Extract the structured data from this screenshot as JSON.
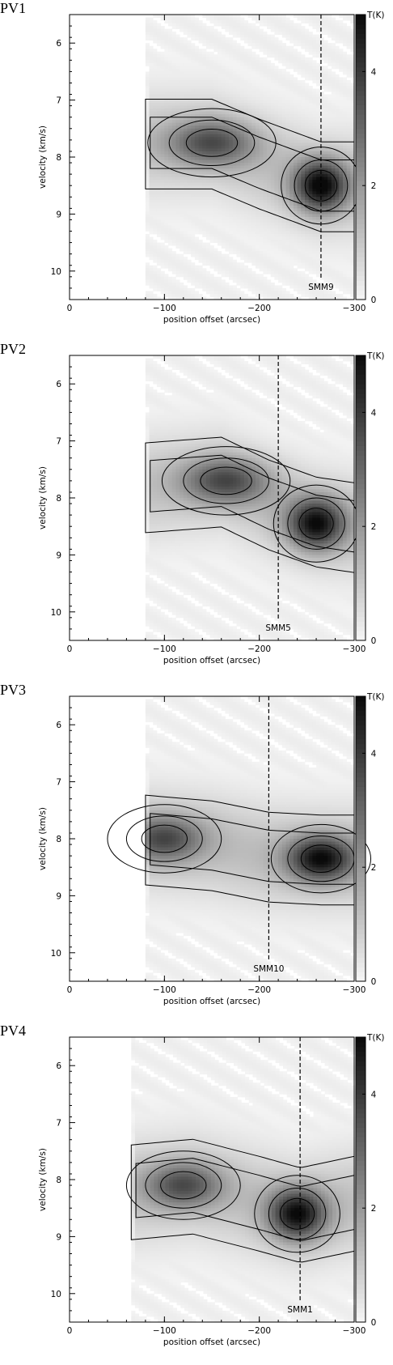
{
  "chart_data": [
    {
      "type": "heatmap",
      "label": "PV1",
      "xlabel": "position offset (arcsec)",
      "ylabel": "velocity (km/s)",
      "colorbar_label": "T(K)",
      "xlim": [
        0,
        -300
      ],
      "ylim": [
        5.5,
        10.5
      ],
      "clim": [
        0,
        5
      ],
      "xticks": [
        0,
        -100,
        -200,
        -300
      ],
      "yticks": [
        6,
        7,
        8,
        9,
        10
      ],
      "cticks": [
        0,
        2,
        4
      ],
      "marker": {
        "name": "SMM9",
        "x": -265
      },
      "emission": {
        "x_start": -80,
        "x_end": -300,
        "ridge": [
          [
            -80,
            7.75
          ],
          [
            -150,
            7.75
          ],
          [
            -200,
            8.1
          ],
          [
            -265,
            8.5
          ],
          [
            -300,
            8.5
          ]
        ],
        "peaks": [
          {
            "x": -265,
            "v": 8.5,
            "T": 4.2,
            "sx": 28,
            "sv": 0.45
          },
          {
            "x": -150,
            "v": 7.75,
            "T": 2.6,
            "sx": 45,
            "sv": 0.4
          }
        ],
        "base_T": 1.1,
        "vwidth": 0.9
      }
    },
    {
      "type": "heatmap",
      "label": "PV2",
      "xlabel": "position offset (arcsec)",
      "ylabel": "velocity (km/s)",
      "colorbar_label": "T(K)",
      "xlim": [
        0,
        -300
      ],
      "ylim": [
        5.5,
        10.5
      ],
      "clim": [
        0,
        5
      ],
      "xticks": [
        0,
        -100,
        -200,
        -300
      ],
      "yticks": [
        6,
        7,
        8,
        9,
        10
      ],
      "cticks": [
        0,
        2,
        4
      ],
      "marker": {
        "name": "SMM5",
        "x": -220
      },
      "emission": {
        "x_start": -80,
        "x_end": -300,
        "ridge": [
          [
            -80,
            7.8
          ],
          [
            -160,
            7.7
          ],
          [
            -210,
            8.1
          ],
          [
            -260,
            8.4
          ],
          [
            -300,
            8.5
          ]
        ],
        "peaks": [
          {
            "x": -260,
            "v": 8.45,
            "T": 4.0,
            "sx": 30,
            "sv": 0.45
          },
          {
            "x": -165,
            "v": 7.7,
            "T": 2.7,
            "sx": 45,
            "sv": 0.4
          }
        ],
        "base_T": 1.1,
        "vwidth": 0.9
      }
    },
    {
      "type": "heatmap",
      "label": "PV3",
      "xlabel": "position offset (arcsec)",
      "ylabel": "velocity (km/s)",
      "colorbar_label": "T(K)",
      "xlim": [
        0,
        -300
      ],
      "ylim": [
        5.5,
        10.5
      ],
      "clim": [
        0,
        5
      ],
      "xticks": [
        0,
        -100,
        -200,
        -300
      ],
      "yticks": [
        6,
        7,
        8,
        9,
        10
      ],
      "cticks": [
        0,
        2,
        4
      ],
      "marker": {
        "name": "SMM10",
        "x": -210
      },
      "emission": {
        "x_start": -80,
        "x_end": -300,
        "ridge": [
          [
            -80,
            8.0
          ],
          [
            -150,
            8.1
          ],
          [
            -210,
            8.3
          ],
          [
            -265,
            8.35
          ],
          [
            -300,
            8.35
          ]
        ],
        "peaks": [
          {
            "x": -265,
            "v": 8.35,
            "T": 3.9,
            "sx": 35,
            "sv": 0.4
          },
          {
            "x": -100,
            "v": 8.0,
            "T": 2.6,
            "sx": 40,
            "sv": 0.4
          }
        ],
        "base_T": 1.2,
        "vwidth": 0.9
      }
    },
    {
      "type": "heatmap",
      "label": "PV4",
      "xlabel": "position offset (arcsec)",
      "ylabel": "velocity (km/s)",
      "colorbar_label": "T(K)",
      "xlim": [
        0,
        -300
      ],
      "ylim": [
        5.5,
        10.5
      ],
      "clim": [
        0,
        5
      ],
      "xticks": [
        0,
        -100,
        -200,
        -300
      ],
      "yticks": [
        6,
        7,
        8,
        9,
        10
      ],
      "cticks": [
        0,
        2,
        4
      ],
      "marker": {
        "name": "SMM1",
        "x": -243
      },
      "emission": {
        "x_start": -65,
        "x_end": -300,
        "ridge": [
          [
            -65,
            8.2
          ],
          [
            -130,
            8.1
          ],
          [
            -200,
            8.4
          ],
          [
            -243,
            8.6
          ],
          [
            -300,
            8.4
          ]
        ],
        "peaks": [
          {
            "x": -240,
            "v": 8.6,
            "T": 4.0,
            "sx": 30,
            "sv": 0.45
          },
          {
            "x": -120,
            "v": 8.1,
            "T": 2.6,
            "sx": 40,
            "sv": 0.4
          }
        ],
        "base_T": 1.1,
        "vwidth": 0.95
      }
    }
  ]
}
